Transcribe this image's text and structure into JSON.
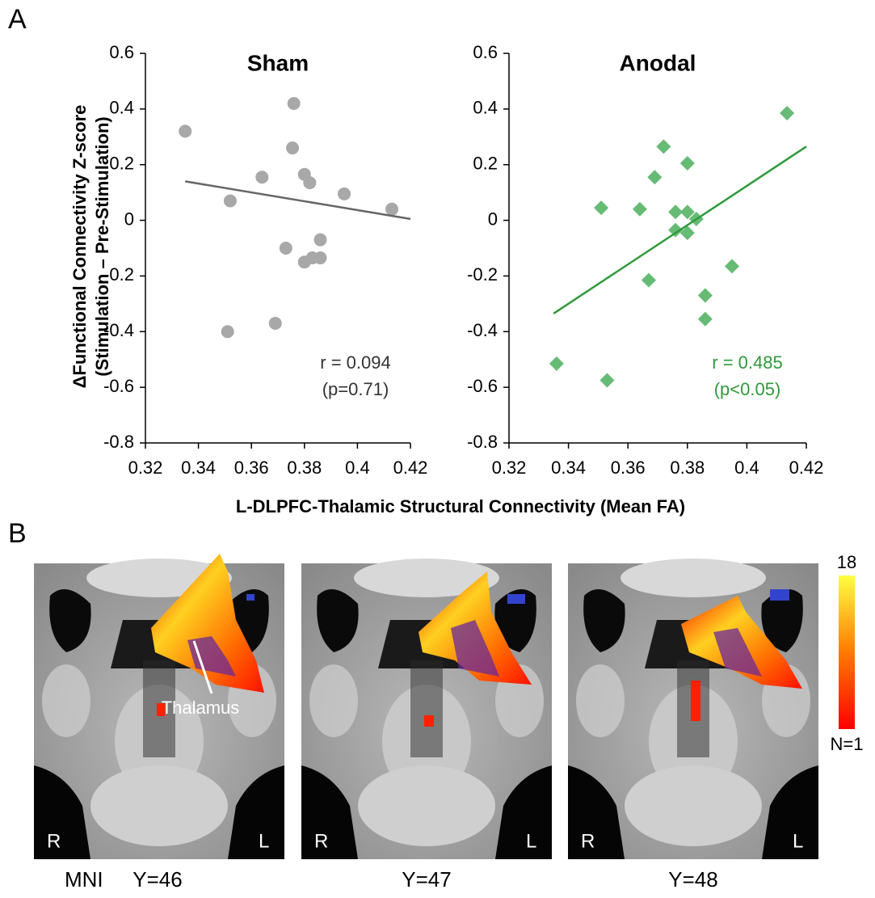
{
  "figure": {
    "panel_a_label": "A",
    "panel_b_label": "B",
    "y_label": [
      "ΔFunctional Connectivity Z-score",
      "(Stimulation – Pre-Stimulation)"
    ],
    "x_label": "L-DLPFC-Thalamic Structural Connectivity (Mean FA)",
    "thalamus": "Thalamus",
    "mni": "MNI",
    "orientation": {
      "right": "R",
      "left": "L"
    },
    "slices": [
      "Y=46",
      "Y=47",
      "Y=48"
    ],
    "colorbar": {
      "max_label": "18",
      "min_label": "N=1"
    }
  },
  "chart_data": [
    {
      "type": "scatter",
      "title": "Sham",
      "marker": "circle",
      "color": "#a8a8a8",
      "x": [
        0.335,
        0.376,
        0.3755,
        0.364,
        0.38,
        0.382,
        0.395,
        0.352,
        0.413,
        0.373,
        0.386,
        0.38,
        0.383,
        0.386,
        0.351,
        0.369
      ],
      "y": [
        0.32,
        0.42,
        0.26,
        0.155,
        0.165,
        0.135,
        0.095,
        0.07,
        0.04,
        -0.1,
        -0.07,
        -0.15,
        -0.135,
        -0.135,
        -0.4,
        -0.37
      ],
      "trendline": {
        "x": [
          0.335,
          0.42
        ],
        "y": [
          0.14,
          0.005
        ],
        "color": "#666666"
      },
      "annotations": [
        "r = 0.094",
        "(p=0.71)"
      ],
      "annotation_color": "#333333",
      "xlim": [
        0.32,
        0.42
      ],
      "xticks": [
        0.32,
        0.34,
        0.36,
        0.38,
        0.4,
        0.42
      ],
      "ylim": [
        -0.8,
        0.6
      ],
      "yticks": [
        -0.8,
        -0.6,
        -0.4,
        -0.2,
        0,
        0.2,
        0.4,
        0.6
      ]
    },
    {
      "type": "scatter",
      "title": "Anodal",
      "marker": "diamond",
      "color": "#66bb75",
      "x": [
        0.4135,
        0.372,
        0.38,
        0.369,
        0.351,
        0.364,
        0.376,
        0.38,
        0.383,
        0.376,
        0.38,
        0.395,
        0.367,
        0.386,
        0.386,
        0.336,
        0.353
      ],
      "y": [
        0.385,
        0.265,
        0.205,
        0.155,
        0.045,
        0.04,
        0.03,
        0.03,
        0.005,
        -0.035,
        -0.045,
        -0.165,
        -0.215,
        -0.27,
        -0.355,
        -0.515,
        -0.575
      ],
      "trendline": {
        "x": [
          0.335,
          0.42
        ],
        "y": [
          -0.335,
          0.265
        ],
        "color": "#2e9a3a"
      },
      "annotations": [
        "r = 0.485",
        "(p<0.05)"
      ],
      "annotation_color": "#2e9a3a",
      "xlim": [
        0.32,
        0.42
      ],
      "xticks": [
        0.32,
        0.34,
        0.36,
        0.38,
        0.4,
        0.42
      ],
      "ylim": [
        -0.8,
        0.6
      ],
      "yticks": [
        -0.8,
        -0.6,
        -0.4,
        -0.2,
        0,
        0.2,
        0.4,
        0.6
      ]
    }
  ]
}
